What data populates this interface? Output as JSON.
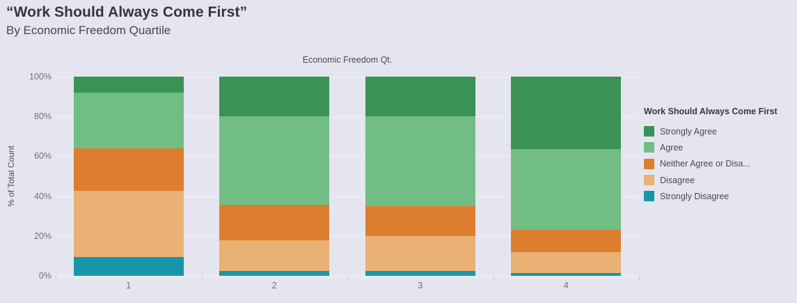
{
  "header": {
    "title": "“Work Should Always Come First”",
    "subtitle": "By Economic Freedom Quartile"
  },
  "chart_data": {
    "type": "bar",
    "subtype": "100%-stacked-vertical",
    "title": "Economic Freedom Qt.",
    "ylabel": "% of Total Count",
    "xlabel": "",
    "categories": [
      "1",
      "2",
      "3",
      "4"
    ],
    "yticks": [
      {
        "label": "0%",
        "value": 0
      },
      {
        "label": "20%",
        "value": 20
      },
      {
        "label": "40%",
        "value": 40
      },
      {
        "label": "60%",
        "value": 60
      },
      {
        "label": "80%",
        "value": 80
      },
      {
        "label": "100%",
        "value": 100
      }
    ],
    "ylim": [
      0,
      100
    ],
    "grid": true,
    "legend_position": "right",
    "legend": {
      "title": "Work Should Always Come First"
    },
    "series": [
      {
        "name": "Strongly Disagree",
        "color": "#1796ab",
        "values": [
          9.5,
          2.5,
          2.5,
          1.5
        ]
      },
      {
        "name": "Disagree",
        "color": "#e9b173",
        "values": [
          33,
          15.5,
          17.5,
          10.5
        ]
      },
      {
        "name": "Neither Agree or Disa...",
        "color": "#dd7e2e",
        "values": [
          21.5,
          17.5,
          15,
          11
        ]
      },
      {
        "name": "Agree",
        "color": "#71bd84",
        "values": [
          28,
          44.5,
          45,
          40.5
        ]
      },
      {
        "name": "Strongly Agree",
        "color": "#3a9255",
        "values": [
          8,
          20,
          20,
          36.5
        ]
      }
    ]
  }
}
